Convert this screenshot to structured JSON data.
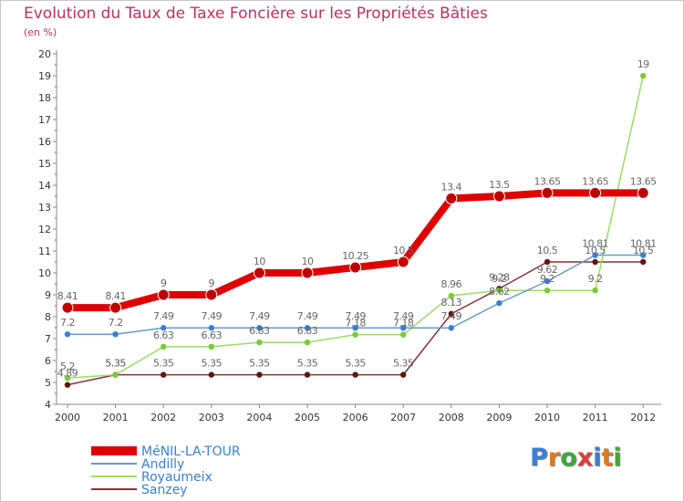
{
  "title": "Evolution du Taux de Taxe Foncière sur les Propriétés Bâties",
  "subtitle": "(en %)",
  "logo": {
    "letters": [
      "P",
      "r",
      "o",
      "x",
      "i",
      "t",
      "i"
    ],
    "colors": [
      "#3a7fd4",
      "#e07a1f",
      "#3ea83a",
      "#e03c3c",
      "#3a7fd4",
      "#e07a1f",
      "#3ea83a"
    ]
  },
  "chart_data": {
    "type": "line",
    "x": [
      "2000",
      "2001",
      "2002",
      "2003",
      "2004",
      "2005",
      "2006",
      "2007",
      "2008",
      "2009",
      "2010",
      "2011",
      "2012"
    ],
    "ylim": [
      4,
      20
    ],
    "yticks": [
      "4",
      "5",
      "6",
      "7",
      "8",
      "9",
      "10",
      "11",
      "12",
      "13",
      "14",
      "15",
      "16",
      "17",
      "18",
      "19",
      "20"
    ],
    "grid": false,
    "legend_position": "bottom-left",
    "series": [
      {
        "name": "MéNIL-LA-TOUR",
        "color": "#e00000",
        "width": 8,
        "marker": "#c00000",
        "values": [
          8.41,
          8.41,
          9,
          9,
          10,
          10,
          10.25,
          10.5,
          13.4,
          13.5,
          13.65,
          13.65,
          13.65
        ],
        "labels": [
          "8.41",
          "8.41",
          "9",
          "9",
          "10",
          "10",
          "10.25",
          "10.5",
          "13.4",
          "13.5",
          "13.65",
          "13.65",
          "13.65"
        ]
      },
      {
        "name": "Andilly",
        "color": "#6699cc",
        "width": 1.5,
        "marker": "#3a7fd4",
        "values": [
          7.2,
          7.2,
          7.49,
          7.49,
          7.49,
          7.49,
          7.49,
          7.49,
          7.49,
          8.62,
          9.62,
          10.81,
          10.81
        ],
        "labels": [
          "7.2",
          "7.2",
          "7.49",
          "7.49",
          "7.49",
          "7.49",
          "7.49",
          "7.49",
          "7.49",
          "8.62",
          "9.62",
          "10.81",
          "10.81"
        ]
      },
      {
        "name": "Royaumeix",
        "color": "#99dd66",
        "width": 1.5,
        "marker": "#77cc33",
        "values": [
          5.2,
          5.35,
          6.63,
          6.63,
          6.83,
          6.83,
          7.18,
          7.18,
          8.96,
          9.2,
          9.2,
          9.2,
          19
        ],
        "labels": [
          "5.2",
          "5.35",
          "6.63",
          "6.63",
          "6.83",
          "6.83",
          "7.18",
          "7.18",
          "8.96",
          "9.2",
          "9.2",
          "9.2",
          "19"
        ]
      },
      {
        "name": "Sanzey",
        "color": "#883333",
        "width": 1.5,
        "marker": "#661111",
        "values": [
          4.89,
          5.35,
          5.35,
          5.35,
          5.35,
          5.35,
          5.35,
          5.35,
          8.13,
          9.28,
          10.5,
          10.5,
          10.5
        ],
        "labels": [
          "4.89",
          "5.35",
          "5.35",
          "5.35",
          "5.35",
          "5.35",
          "5.35",
          "5.35",
          "8.13",
          "9.28",
          "10.5",
          "10.5",
          "10.5"
        ]
      }
    ]
  }
}
